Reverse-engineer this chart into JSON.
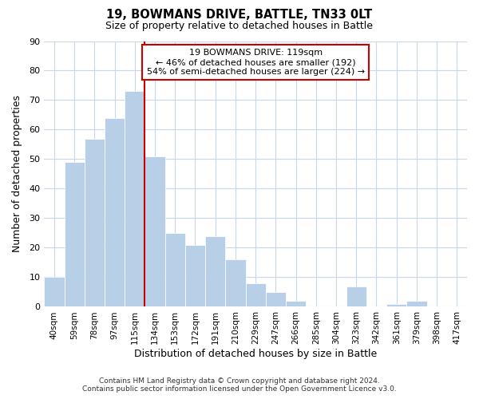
{
  "title": "19, BOWMANS DRIVE, BATTLE, TN33 0LT",
  "subtitle": "Size of property relative to detached houses in Battle",
  "xlabel": "Distribution of detached houses by size in Battle",
  "ylabel": "Number of detached properties",
  "categories": [
    "40sqm",
    "59sqm",
    "78sqm",
    "97sqm",
    "115sqm",
    "134sqm",
    "153sqm",
    "172sqm",
    "191sqm",
    "210sqm",
    "229sqm",
    "247sqm",
    "266sqm",
    "285sqm",
    "304sqm",
    "323sqm",
    "342sqm",
    "361sqm",
    "379sqm",
    "398sqm",
    "417sqm"
  ],
  "values": [
    10,
    49,
    57,
    64,
    73,
    51,
    25,
    21,
    24,
    16,
    8,
    5,
    2,
    0,
    0,
    7,
    0,
    1,
    2,
    0,
    0
  ],
  "bar_color": "#b8cfe8",
  "marker_line_index": 4,
  "marker_line_color": "#cc0000",
  "ylim": [
    0,
    90
  ],
  "yticks": [
    0,
    10,
    20,
    30,
    40,
    50,
    60,
    70,
    80,
    90
  ],
  "annotation_title": "19 BOWMANS DRIVE: 119sqm",
  "annotation_line1": "← 46% of detached houses are smaller (192)",
  "annotation_line2": "54% of semi-detached houses are larger (224) →",
  "annotation_box_edge_color": "#cc0000",
  "footer_line1": "Contains HM Land Registry data © Crown copyright and database right 2024.",
  "footer_line2": "Contains public sector information licensed under the Open Government Licence v3.0.",
  "background_color": "#ffffff",
  "grid_color": "#c8d8ea"
}
